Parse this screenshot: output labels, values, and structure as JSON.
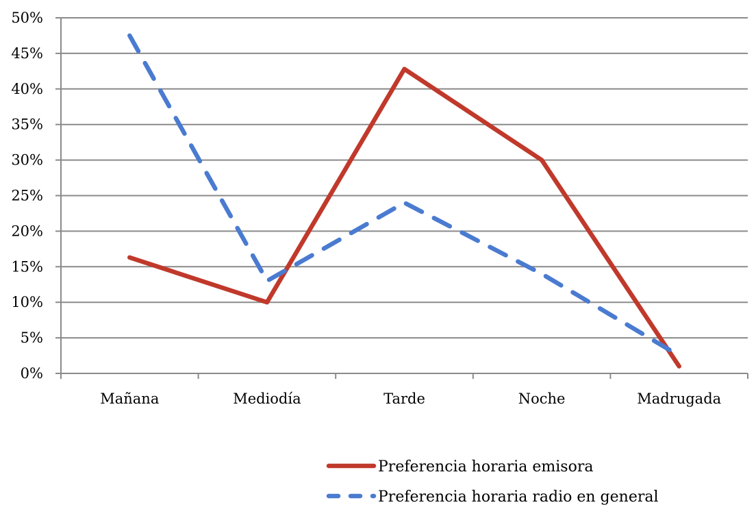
{
  "chart_data": {
    "type": "line",
    "categories": [
      "Mañana",
      "Mediodía",
      "Tarde",
      "Noche",
      "Madrugada"
    ],
    "ylim": [
      0,
      0.5
    ],
    "ytick_values": [
      0,
      0.05,
      0.1,
      0.15,
      0.2,
      0.25,
      0.3,
      0.35,
      0.4,
      0.45,
      0.5
    ],
    "ytick_labels": [
      "0%",
      "5%",
      "10%",
      "15%",
      "20%",
      "25%",
      "30%",
      "35%",
      "40%",
      "45%",
      "50%"
    ],
    "grid": true,
    "legend_position": "bottom",
    "series": [
      {
        "name": "Preferencia horaria emisora",
        "values": [
          0.163,
          0.1,
          0.428,
          0.3,
          0.01
        ],
        "color": "#C0392B",
        "style": "solid"
      },
      {
        "name": "Preferencia horaria radio en general",
        "values": [
          0.475,
          0.13,
          0.24,
          0.14,
          0.025
        ],
        "color": "#4A7BD0",
        "style": "dashed"
      }
    ]
  }
}
